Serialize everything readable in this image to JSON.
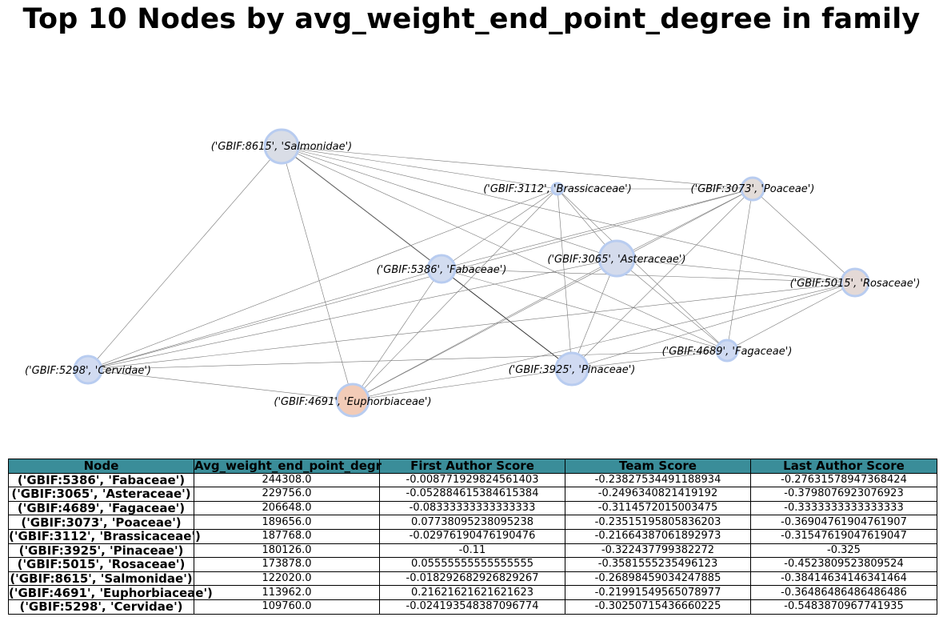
{
  "title": "Top 10 Nodes by avg_weight_end_point_degree in family",
  "graph": {
    "nodes": [
      {
        "id": "salmonidae",
        "label": "('GBIF:8615', 'Salmonidae')",
        "color": "#d9dde6"
      },
      {
        "id": "brassicaceae",
        "label": "('GBIF:3112', 'Brassicaceae')",
        "color": "#d3ddef"
      },
      {
        "id": "poaceae",
        "label": "('GBIF:3073', 'Poaceae')",
        "color": "#e3dcd9"
      },
      {
        "id": "asteraceae",
        "label": "('GBIF:3065', 'Asteraceae')",
        "color": "#d4dbec"
      },
      {
        "id": "fabaceae",
        "label": "('GBIF:5386', 'Fabaceae')",
        "color": "#d2dcf0"
      },
      {
        "id": "rosaceae",
        "label": "('GBIF:5015', 'Rosaceae')",
        "color": "#e4d9d6"
      },
      {
        "id": "fagaceae",
        "label": "('GBIF:4689', 'Fagaceae')",
        "color": "#cfdaf2"
      },
      {
        "id": "cervidae",
        "label": "('GBIF:5298', 'Cervidae')",
        "color": "#d1dbf1"
      },
      {
        "id": "pinaceae",
        "label": "('GBIF:3925', 'Pinaceae')",
        "color": "#d0daf2"
      },
      {
        "id": "euphorbiaceae",
        "label": "('GBIF:4691', 'Euphorbiaceae')",
        "color": "#f2cbb7"
      }
    ],
    "edges": [
      [
        "salmonidae",
        "pinaceae",
        2
      ],
      [
        "salmonidae",
        "poaceae",
        1
      ],
      [
        "salmonidae",
        "brassicaceae",
        1
      ],
      [
        "salmonidae",
        "asteraceae",
        1
      ],
      [
        "salmonidae",
        "fabaceae",
        1
      ],
      [
        "salmonidae",
        "rosaceae",
        1
      ],
      [
        "salmonidae",
        "fagaceae",
        1
      ],
      [
        "salmonidae",
        "cervidae",
        1
      ],
      [
        "salmonidae",
        "euphorbiaceae",
        1
      ],
      [
        "brassicaceae",
        "poaceae",
        1
      ],
      [
        "brassicaceae",
        "asteraceae",
        1
      ],
      [
        "brassicaceae",
        "fabaceae",
        1
      ],
      [
        "brassicaceae",
        "cervidae",
        1
      ],
      [
        "brassicaceae",
        "pinaceae",
        1
      ],
      [
        "brassicaceae",
        "fagaceae",
        1
      ],
      [
        "brassicaceae",
        "euphorbiaceae",
        1
      ],
      [
        "poaceae",
        "asteraceae",
        1
      ],
      [
        "poaceae",
        "rosaceae",
        1
      ],
      [
        "poaceae",
        "fabaceae",
        1
      ],
      [
        "poaceae",
        "cervidae",
        1
      ],
      [
        "poaceae",
        "fagaceae",
        1
      ],
      [
        "poaceae",
        "pinaceae",
        1
      ],
      [
        "poaceae",
        "euphorbiaceae",
        1
      ],
      [
        "asteraceae",
        "rosaceae",
        1
      ],
      [
        "asteraceae",
        "fagaceae",
        1
      ],
      [
        "asteraceae",
        "cervidae",
        1
      ],
      [
        "asteraceae",
        "pinaceae",
        1
      ],
      [
        "asteraceae",
        "euphorbiaceae",
        1
      ],
      [
        "fabaceae",
        "rosaceae",
        1
      ],
      [
        "fabaceae",
        "fagaceae",
        1
      ],
      [
        "fabaceae",
        "cervidae",
        1
      ],
      [
        "fabaceae",
        "euphorbiaceae",
        1
      ],
      [
        "rosaceae",
        "cervidae",
        1
      ],
      [
        "rosaceae",
        "fagaceae",
        1
      ],
      [
        "rosaceae",
        "pinaceae",
        1
      ],
      [
        "rosaceae",
        "euphorbiaceae",
        1
      ],
      [
        "fagaceae",
        "cervidae",
        1
      ],
      [
        "fagaceae",
        "pinaceae",
        1
      ],
      [
        "cervidae",
        "euphorbiaceae",
        1
      ],
      [
        "pinaceae",
        "euphorbiaceae",
        1
      ]
    ],
    "node_border_color": "#b8ccf0",
    "edge_color": "#777777"
  },
  "table": {
    "header_color": "#3a8d99",
    "headers": [
      "Node",
      "Avg_weight_end_point_degr",
      "First Author Score",
      "Team Score",
      "Last Author Score"
    ],
    "rows": [
      [
        "('GBIF:5386', 'Fabaceae')",
        "244308.0",
        "-0.008771929824561403",
        "-0.23827534491188934",
        "-0.27631578947368424"
      ],
      [
        "('GBIF:3065', 'Asteraceae')",
        "229756.0",
        "-0.052884615384615384",
        "-0.2496340821419192",
        "-0.3798076923076923"
      ],
      [
        "('GBIF:4689', 'Fagaceae')",
        "206648.0",
        "-0.08333333333333333",
        "-0.3114572015003475",
        "-0.3333333333333333"
      ],
      [
        "('GBIF:3073', 'Poaceae')",
        "189656.0",
        "0.07738095238095238",
        "-0.23515195805836203",
        "-0.36904761904761907"
      ],
      [
        "('GBIF:3112', 'Brassicaceae')",
        "187768.0",
        "-0.02976190476190476",
        "-0.21664387061892973",
        "-0.31547619047619047"
      ],
      [
        "('GBIF:3925', 'Pinaceae')",
        "180126.0",
        "-0.11",
        "-0.322437799382272",
        "-0.325"
      ],
      [
        "('GBIF:5015', 'Rosaceae')",
        "173878.0",
        "0.05555555555555555",
        "-0.3581555235496123",
        "-0.4523809523809524"
      ],
      [
        "('GBIF:8615', 'Salmonidae')",
        "122020.0",
        "-0.018292682926829267",
        "-0.26898459034247885",
        "-0.38414634146341464"
      ],
      [
        "('GBIF:4691', 'Euphorbiaceae')",
        "113962.0",
        "0.21621621621621623",
        "-0.21991549565078977",
        "-0.36486486486486486"
      ],
      [
        "('GBIF:5298', 'Cervidae')",
        "109760.0",
        "-0.024193548387096774",
        "-0.30250715436660225",
        "-0.5483870967741935"
      ]
    ]
  }
}
